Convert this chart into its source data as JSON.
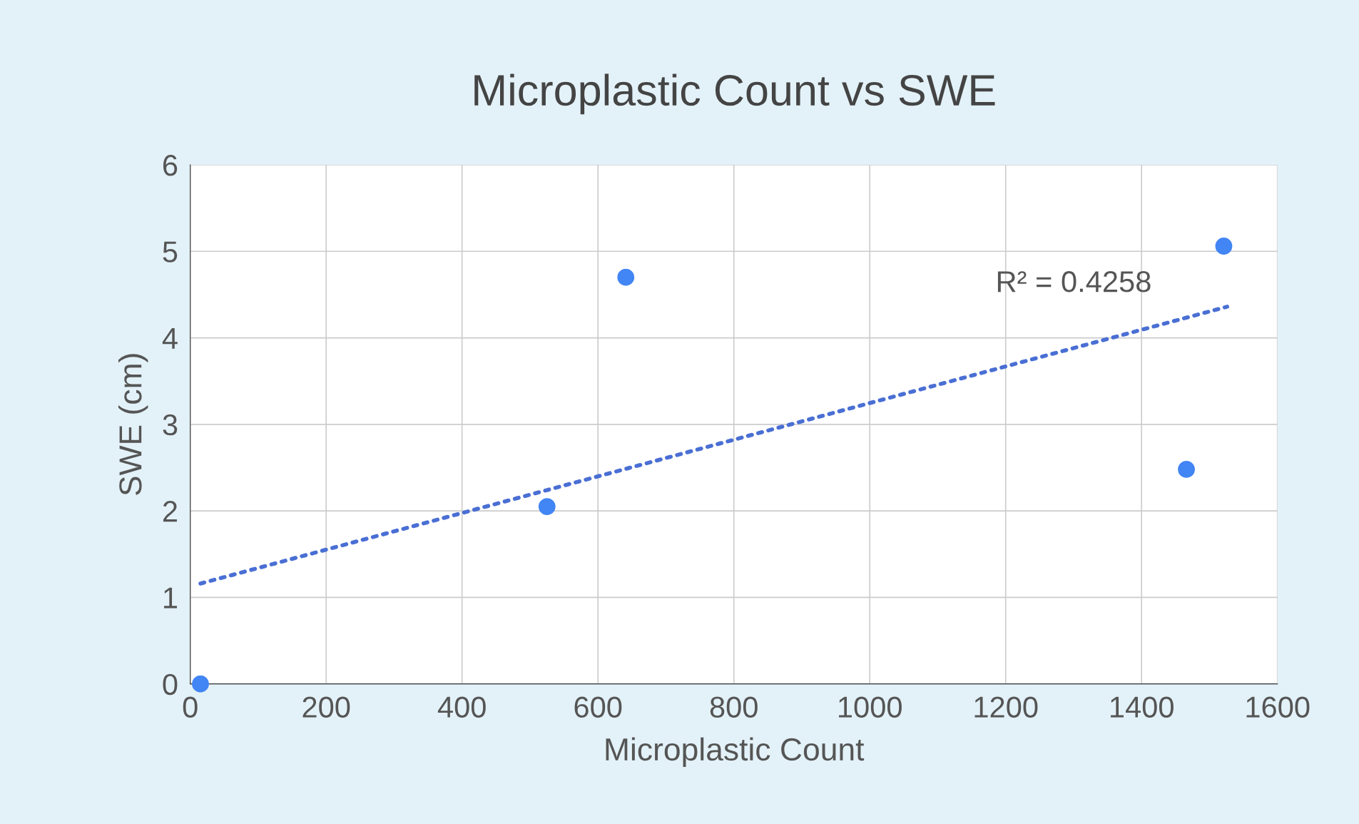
{
  "chart_data": {
    "type": "scatter",
    "title": "Microplastic Count vs SWE",
    "xlabel": "Microplastic Count",
    "ylabel": "SWE (cm)",
    "series": [
      {
        "color": "#4285f4",
        "x": [
          15,
          525,
          641,
          1466,
          1521
        ],
        "values": [
          0,
          2.05,
          4.7,
          2.48,
          5.06
        ]
      },
      {
        "type": "line",
        "color": "#4a6fd4",
        "line_style": "dotted",
        "marker": "none",
        "x": [
          15,
          1526
        ],
        "values": [
          1.16,
          4.36
        ]
      }
    ],
    "annotations": [
      "R² = 0.4258"
    ],
    "xlim": [
      0,
      1600
    ],
    "xticks": [
      0,
      200,
      400,
      600,
      800,
      1000,
      1200,
      1400,
      1600
    ],
    "ylim": [
      0,
      6
    ],
    "yticks": [
      0,
      1,
      2,
      3,
      4,
      5,
      6
    ],
    "grid": true,
    "legend": false
  }
}
